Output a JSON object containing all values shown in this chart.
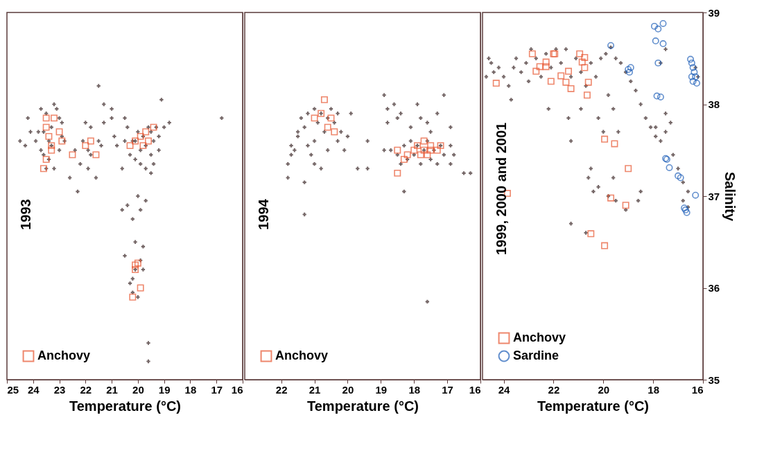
{
  "chart_data": [
    {
      "type": "scatter",
      "xlabel": "Temperature (°C)",
      "xlim": [
        25,
        16
      ],
      "xticks": [
        25,
        24,
        23,
        22,
        21,
        20,
        19,
        18,
        17,
        16
      ],
      "ylim": [
        35,
        39
      ],
      "yticks": [
        35,
        36,
        37,
        38,
        39
      ],
      "tick_labels": "x",
      "legend": "bottom left",
      "annotations": [
        "1993"
      ],
      "series": [
        {
          "color": "#3a2626",
          "marker": "cross",
          "x": [
            24.5,
            24.2,
            24.1,
            23.9,
            23.8,
            23.7,
            23.6,
            23.5,
            23.5,
            23.4,
            23.3,
            23.2,
            23.1,
            23.0,
            23.0,
            23.2,
            22.9,
            22.8,
            23.7,
            23.4,
            24.3,
            23.6,
            23.3,
            22.9,
            22.6,
            22.4,
            22.2,
            22.1,
            21.9,
            21.8,
            21.8,
            21.6,
            21.5,
            22.3,
            21.9,
            21.4,
            21.5,
            21.0,
            21.3,
            21.0,
            21.3,
            22.0,
            20.9,
            20.8,
            20.5,
            20.6,
            20.4,
            20.3,
            20.2,
            20.5,
            20.1,
            20.0,
            19.9,
            19.8,
            19.7,
            19.6,
            19.5,
            19.4,
            19.3,
            19.2,
            19.0,
            19.9,
            19.7,
            20.1,
            19.5,
            18.8,
            19.1,
            19.2,
            19.4,
            19.5,
            16.8,
            20.6,
            20.4,
            20.2,
            20.0,
            19.9,
            19.7,
            20.1,
            19.9,
            20.5,
            20.3,
            20.2,
            20.1,
            19.8,
            20.2,
            19.6,
            19.6,
            19.8,
            20.0
          ],
          "values": [
            37.6,
            37.85,
            37.7,
            37.6,
            37.7,
            37.5,
            37.45,
            37.9,
            37.3,
            37.6,
            37.75,
            38.0,
            37.95,
            37.85,
            37.5,
            37.3,
            37.8,
            37.6,
            37.95,
            37.4,
            37.55,
            37.7,
            37.55,
            37.65,
            37.2,
            37.5,
            37.35,
            37.6,
            37.3,
            37.75,
            37.45,
            37.2,
            37.6,
            37.05,
            37.5,
            37.55,
            38.2,
            37.95,
            38.0,
            37.85,
            37.8,
            37.8,
            37.65,
            37.55,
            37.6,
            37.3,
            37.75,
            37.45,
            37.6,
            37.85,
            37.6,
            37.7,
            37.5,
            37.65,
            37.55,
            37.75,
            37.7,
            37.6,
            37.75,
            37.65,
            37.75,
            37.35,
            37.3,
            37.4,
            37.45,
            37.8,
            38.05,
            37.5,
            37.35,
            37.25,
            37.85,
            36.85,
            36.9,
            36.75,
            37.0,
            36.85,
            36.95,
            36.5,
            36.3,
            36.35,
            36.05,
            35.95,
            36.2,
            36.2,
            36.1,
            35.4,
            35.2,
            36.45,
            35.9
          ]
        },
        {
          "name": "Anchovy",
          "color": "#e8552f",
          "marker": "square",
          "x": [
            23.5,
            23.5,
            23.4,
            23.3,
            23.5,
            23.3,
            23.2,
            23.0,
            22.9,
            23.6,
            22.5,
            22.0,
            21.8,
            21.6,
            20.3,
            20.1,
            19.9,
            19.8,
            19.7,
            19.6,
            19.4,
            20.0,
            20.1,
            19.9,
            20.1,
            20.2
          ],
          "values": [
            37.85,
            37.75,
            37.65,
            37.55,
            37.4,
            37.5,
            37.85,
            37.7,
            37.6,
            37.3,
            37.45,
            37.55,
            37.6,
            37.45,
            37.55,
            37.6,
            37.65,
            37.55,
            37.7,
            37.6,
            37.75,
            36.27,
            36.25,
            36.0,
            36.2,
            35.9
          ]
        }
      ]
    },
    {
      "type": "scatter",
      "xlabel": "Temperature (°C)",
      "xlim": [
        23.1,
        16
      ],
      "xticks": [
        22,
        21,
        20,
        19,
        18,
        17,
        16
      ],
      "ylim": [
        35,
        39
      ],
      "yticks": [
        35,
        36,
        37,
        38,
        39
      ],
      "tick_labels": "x",
      "legend": "bottom left",
      "annotations": [
        "1994"
      ],
      "series": [
        {
          "color": "#3a2626",
          "marker": "cross",
          "x": [
            21.8,
            21.8,
            21.7,
            21.7,
            21.6,
            21.5,
            21.5,
            21.4,
            21.3,
            21.2,
            21.2,
            21.1,
            21.0,
            21.0,
            21.0,
            20.9,
            20.8,
            20.7,
            20.6,
            20.5,
            20.4,
            20.3,
            20.3,
            20.2,
            20.1,
            20.6,
            20.8,
            21.3,
            21.3,
            20.0,
            19.9,
            19.7,
            19.4,
            19.4,
            18.9,
            18.8,
            18.8,
            18.6,
            18.5,
            18.4,
            18.1,
            17.9,
            17.8,
            17.6,
            17.3,
            17.1,
            16.9,
            16.9,
            18.9,
            18.7,
            18.5,
            18.3,
            18.2,
            18.1,
            18.0,
            17.9,
            17.8,
            17.7,
            17.6,
            17.5,
            17.4,
            17.3,
            17.2,
            17.1,
            16.9,
            16.8,
            17.5,
            18.4,
            18.3,
            16.3,
            16.5,
            17.6
          ],
          "values": [
            37.2,
            37.35,
            37.45,
            37.55,
            37.5,
            37.65,
            37.7,
            37.85,
            37.75,
            37.9,
            37.55,
            37.45,
            37.35,
            37.6,
            37.95,
            37.8,
            37.9,
            37.7,
            37.85,
            37.95,
            37.8,
            37.6,
            37.9,
            37.7,
            37.5,
            37.5,
            37.3,
            37.15,
            36.8,
            37.65,
            37.9,
            37.3,
            37.3,
            37.6,
            38.1,
            37.95,
            37.8,
            38.0,
            37.85,
            37.9,
            37.75,
            38.0,
            37.85,
            37.8,
            37.9,
            38.1,
            37.75,
            37.55,
            37.5,
            37.5,
            37.45,
            37.55,
            37.4,
            37.6,
            37.45,
            37.55,
            37.35,
            37.5,
            37.6,
            37.4,
            37.5,
            37.35,
            37.55,
            37.45,
            37.35,
            37.45,
            37.7,
            37.35,
            37.05,
            37.25,
            37.25,
            35.85
          ]
        },
        {
          "name": "Anchovy",
          "color": "#e8552f",
          "marker": "square",
          "x": [
            20.7,
            21.0,
            20.8,
            20.5,
            20.6,
            20.4,
            18.5,
            18.5,
            18.2,
            18.0,
            17.9,
            17.8,
            17.7,
            17.6,
            17.5,
            17.5,
            17.3,
            17.2,
            18.3,
            17.7
          ],
          "values": [
            38.05,
            37.85,
            37.9,
            37.85,
            37.75,
            37.7,
            37.5,
            37.25,
            37.45,
            37.5,
            37.55,
            37.45,
            37.5,
            37.45,
            37.5,
            37.55,
            37.5,
            37.55,
            37.4,
            37.6
          ]
        }
      ]
    },
    {
      "type": "scatter",
      "xlabel": "Temperature (°C)",
      "ylabel": "Salinity",
      "xlim": [
        24.85,
        16
      ],
      "xticks": [
        24,
        22,
        20,
        18,
        16
      ],
      "ylim": [
        35,
        39
      ],
      "yticks": [
        35,
        36,
        37,
        38,
        39
      ],
      "legend": "bottom left",
      "annotations": [
        "1999, 2000 and 2001"
      ],
      "series": [
        {
          "color": "#3a2626",
          "marker": "cross",
          "x": [
            24.7,
            24.6,
            24.5,
            24.4,
            24.2,
            24.0,
            23.8,
            23.6,
            23.5,
            23.3,
            23.1,
            23.0,
            22.9,
            22.7,
            22.5,
            22.3,
            22.1,
            21.9,
            21.7,
            21.5,
            21.3,
            21.1,
            20.9,
            20.7,
            20.5,
            20.3,
            20.1,
            19.9,
            19.7,
            19.5,
            19.3,
            19.1,
            18.9,
            18.7,
            18.5,
            18.3,
            18.1,
            17.9,
            17.7,
            17.9,
            17.5,
            17.3,
            17.5,
            17.7,
            17.5,
            17.2,
            17.0,
            16.8,
            16.6,
            16.8,
            16.6,
            16.3,
            16.2,
            23.7,
            22.2,
            21.4,
            20.9,
            20.2,
            19.6,
            19.8,
            20.0,
            19.4,
            21.3,
            20.6,
            20.4,
            20.2,
            19.8,
            19.5,
            19.1,
            18.6,
            18.5,
            21.3,
            20.7,
            19.6,
            20.5
          ],
          "values": [
            38.3,
            38.5,
            38.45,
            38.35,
            38.4,
            38.3,
            38.2,
            38.4,
            38.5,
            38.35,
            38.45,
            38.25,
            38.6,
            38.5,
            38.3,
            38.55,
            38.4,
            38.6,
            38.45,
            38.6,
            38.3,
            38.5,
            38.35,
            38.2,
            38.45,
            38.3,
            38.5,
            38.55,
            38.62,
            38.5,
            38.45,
            38.35,
            38.25,
            38.15,
            38.0,
            37.85,
            37.75,
            37.65,
            37.6,
            37.75,
            37.7,
            37.8,
            37.9,
            38.45,
            38.6,
            37.45,
            37.3,
            37.15,
            37.05,
            36.95,
            36.88,
            38.4,
            38.3,
            38.05,
            37.95,
            37.85,
            37.95,
            37.85,
            37.95,
            38.1,
            37.7,
            37.7,
            37.6,
            37.2,
            37.05,
            37.1,
            37.0,
            36.95,
            36.85,
            36.95,
            37.05,
            36.7,
            36.6,
            37.2,
            37.3
          ]
        },
        {
          "name": "Anchovy",
          "color": "#e8552f",
          "marker": "square",
          "x": [
            24.3,
            22.85,
            22.7,
            22.55,
            22.3,
            22.3,
            22.1,
            22.0,
            21.95,
            21.7,
            21.5,
            21.4,
            21.3,
            20.95,
            20.85,
            20.75,
            20.75,
            20.6,
            20.65,
            19.95,
            19.55,
            19.0,
            23.85,
            19.7,
            19.1,
            20.5,
            19.95
          ],
          "values": [
            38.23,
            38.55,
            38.36,
            38.41,
            38.41,
            38.46,
            38.25,
            38.55,
            38.55,
            38.31,
            38.24,
            38.36,
            38.17,
            38.55,
            38.46,
            38.4,
            38.51,
            38.24,
            38.1,
            37.62,
            37.57,
            37.3,
            37.03,
            36.98,
            36.9,
            36.59,
            36.46
          ]
        },
        {
          "name": "Sardine",
          "color": "#1f5fb8",
          "marker": "circle",
          "x": [
            19.7,
            19.0,
            18.95,
            18.9,
            17.95,
            17.8,
            17.6,
            17.9,
            17.6,
            17.8,
            17.85,
            17.7,
            16.5,
            16.45,
            16.4,
            16.35,
            16.3,
            16.4,
            16.25,
            16.45,
            17.5,
            17.45,
            17.35,
            17.0,
            16.9,
            16.3,
            16.75,
            16.7,
            16.65
          ],
          "values": [
            38.64,
            38.38,
            38.35,
            38.4,
            38.85,
            38.82,
            38.88,
            38.69,
            38.66,
            38.45,
            38.09,
            38.08,
            38.49,
            38.45,
            38.4,
            38.35,
            38.3,
            38.25,
            38.23,
            38.3,
            37.41,
            37.4,
            37.31,
            37.22,
            37.2,
            37.01,
            36.87,
            36.85,
            36.82
          ]
        }
      ]
    }
  ]
}
